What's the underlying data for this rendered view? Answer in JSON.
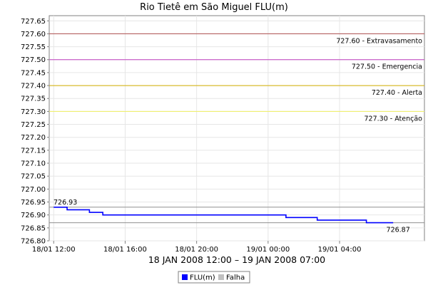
{
  "chart_data": {
    "type": "line",
    "title": "Rio Tietê em São Miguel FLU(m)",
    "xlabel": "18 JAN 2008 12:00 – 19 JAN 2008 07:00",
    "ylabel": "",
    "ylim": [
      726.8,
      727.67
    ],
    "yticks": [
      726.8,
      726.85,
      726.9,
      726.95,
      727.0,
      727.05,
      727.1,
      727.15,
      727.2,
      727.25,
      727.3,
      727.35,
      727.4,
      727.45,
      727.5,
      727.55,
      727.6,
      727.65
    ],
    "ytick_labels": [
      "726.80",
      "726.85",
      "726.90",
      "726.95",
      "727.00",
      "727.05",
      "727.10",
      "727.15",
      "727.20",
      "727.25",
      "727.30",
      "727.35",
      "727.40",
      "727.45",
      "727.50",
      "727.55",
      "727.60",
      "727.65"
    ],
    "xlim": [
      "2008-01-18T11:45",
      "2008-01-19T08:45"
    ],
    "xticks": [
      "2008-01-18T12:00",
      "2008-01-18T16:00",
      "2008-01-18T20:00",
      "2008-01-19T00:00",
      "2008-01-19T04:00"
    ],
    "xtick_labels": [
      "18/01 12:00",
      "18/01 16:00",
      "18/01 20:00",
      "19/01 00:00",
      "19/01 04:00"
    ],
    "grid": true,
    "legend_position": "bottom-center",
    "series": [
      {
        "name": "FLU(m)",
        "color": "#0000ff",
        "step": true,
        "points": [
          [
            "2008-01-18T12:00",
            726.93
          ],
          [
            "2008-01-18T12:45",
            726.92
          ],
          [
            "2008-01-18T14:00",
            726.91
          ],
          [
            "2008-01-18T14:45",
            726.9
          ],
          [
            "2008-01-19T01:00",
            726.89
          ],
          [
            "2008-01-19T02:45",
            726.88
          ],
          [
            "2008-01-19T05:30",
            726.87
          ],
          [
            "2008-01-19T07:00",
            726.87
          ]
        ]
      },
      {
        "name": "Falha",
        "color": "#c0c0c0",
        "points": []
      }
    ],
    "thresholds": [
      {
        "value": 727.6,
        "label": "727.60 - Extravasamento",
        "color": "#b05050"
      },
      {
        "value": 727.5,
        "label": "727.50 - Emergencia",
        "color": "#c040c0"
      },
      {
        "value": 727.4,
        "label": "727.40 - Alerta",
        "color": "#d4b000"
      },
      {
        "value": 727.3,
        "label": "727.30 - Atenção",
        "color": "#f0f060"
      }
    ],
    "reference_lines": [
      {
        "value": 726.93,
        "color": "#909090"
      },
      {
        "value": 726.87,
        "color": "#909090"
      }
    ],
    "annotations": [
      {
        "text": "726.93",
        "at": [
          "2008-01-18T12:00",
          726.93
        ]
      },
      {
        "text": "726.87",
        "at": [
          "2008-01-19T07:00",
          726.87
        ]
      }
    ]
  }
}
